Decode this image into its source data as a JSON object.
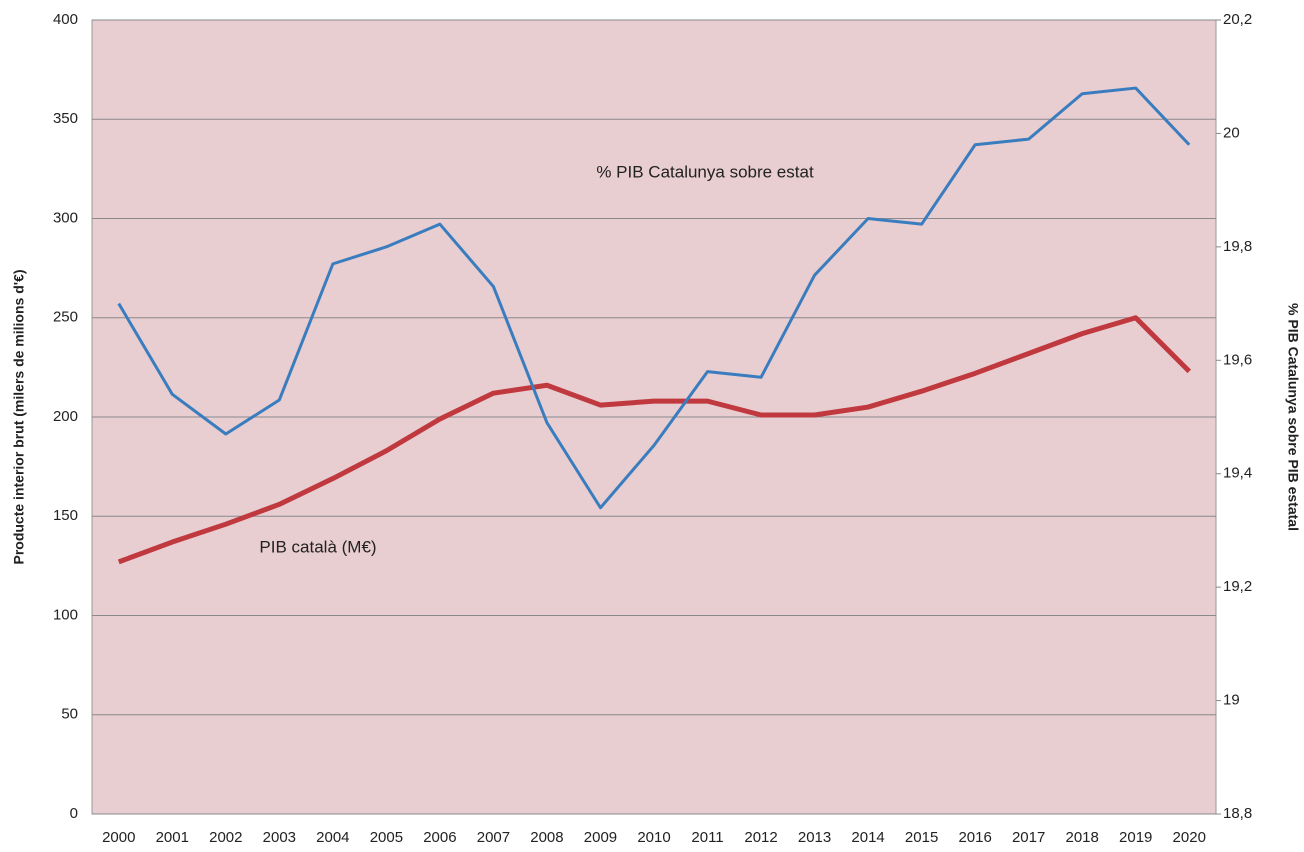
{
  "chart_data": {
    "type": "line",
    "ylabel": "Producte interior brut (milers de milions d'€)",
    "y2label": "% PIB Catalunya sobre PIB estatal",
    "categories": [
      "2000",
      "2001",
      "2002",
      "2003",
      "2004",
      "2005",
      "2006",
      "2007",
      "2008",
      "2009",
      "2010",
      "2011",
      "2012",
      "2013",
      "2014",
      "2015",
      "2016",
      "2017",
      "2018",
      "2019",
      "2020"
    ],
    "series": [
      {
        "name": "PIB català (M€)",
        "color": "#c0393e",
        "values": [
          127,
          137,
          146,
          156,
          169,
          183,
          199,
          212,
          216,
          206,
          208,
          208,
          201,
          201,
          205,
          213,
          222,
          232,
          242,
          250,
          223
        ]
      },
      {
        "name": "% PIB Catalunya sobre estat",
        "color": "#3a7dbf",
        "axis": "y2",
        "values": [
          19.7,
          19.54,
          19.47,
          19.53,
          19.77,
          19.8,
          19.84,
          19.73,
          19.49,
          19.34,
          19.45,
          19.58,
          19.57,
          19.75,
          19.85,
          19.84,
          19.98,
          19.99,
          20.07,
          20.08,
          19.98
        ]
      }
    ],
    "ylim": [
      0,
      400
    ],
    "yticks": [
      0,
      50,
      100,
      150,
      200,
      250,
      300,
      350,
      400
    ],
    "y2lim": [
      18.8,
      20.2
    ],
    "y2ticks": [
      {
        "value": 18.8,
        "label": "18,8"
      },
      19,
      {
        "value": 19.2,
        "label": "19,2"
      },
      {
        "value": 19.4,
        "label": "19,4"
      },
      {
        "value": 19.6,
        "label": "19,6"
      },
      {
        "value": 19.8,
        "label": "19,8"
      },
      20,
      {
        "value": 20.2,
        "label": "20,2"
      }
    ],
    "grid": true
  }
}
